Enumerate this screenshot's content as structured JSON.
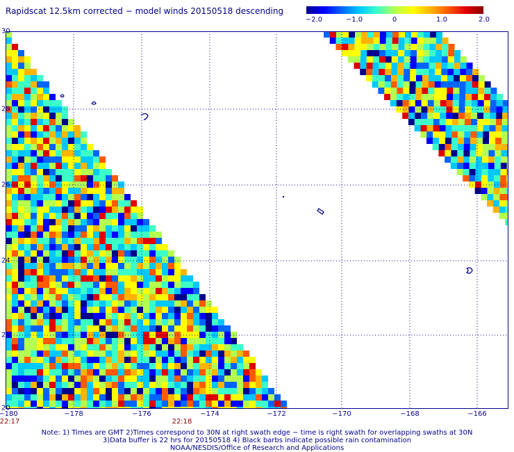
{
  "title": "Rapidscat 12.5km corrected − model winds 20150518 descending",
  "colorbar": {
    "ticks": [
      "−2.0",
      "−1.0",
      "0",
      "1.0",
      "2.0"
    ],
    "min": -2.0,
    "max": 2.0,
    "colors": [
      "#00008b",
      "#0000ff",
      "#0064ff",
      "#00c8ff",
      "#3cffc8",
      "#b4ff50",
      "#ffff00",
      "#ffb400",
      "#ff5a00",
      "#e10000",
      "#8b0000"
    ]
  },
  "map": {
    "lon_range": [
      -180,
      -165
    ],
    "lat_range": [
      20,
      30
    ],
    "lon_labels": [
      "−180",
      "−178",
      "−176",
      "−174",
      "−172",
      "−170",
      "−168",
      "−166"
    ],
    "lat_labels": [
      "30",
      "28",
      "26",
      "24",
      "22",
      "20"
    ],
    "times": [
      "22:17",
      "22:18"
    ]
  },
  "notes": {
    "line1": "Note: 1) Times are GMT 2)Times correspond to 30N at right swath edge − time is right swath for overlapping swaths at 30N",
    "line2": "3)Data buffer is 22 hrs for 20150518 4) Black barbs indicate possible rain contamination",
    "line3": "NOAA/NESDIS/Office of Research and Applications"
  }
}
